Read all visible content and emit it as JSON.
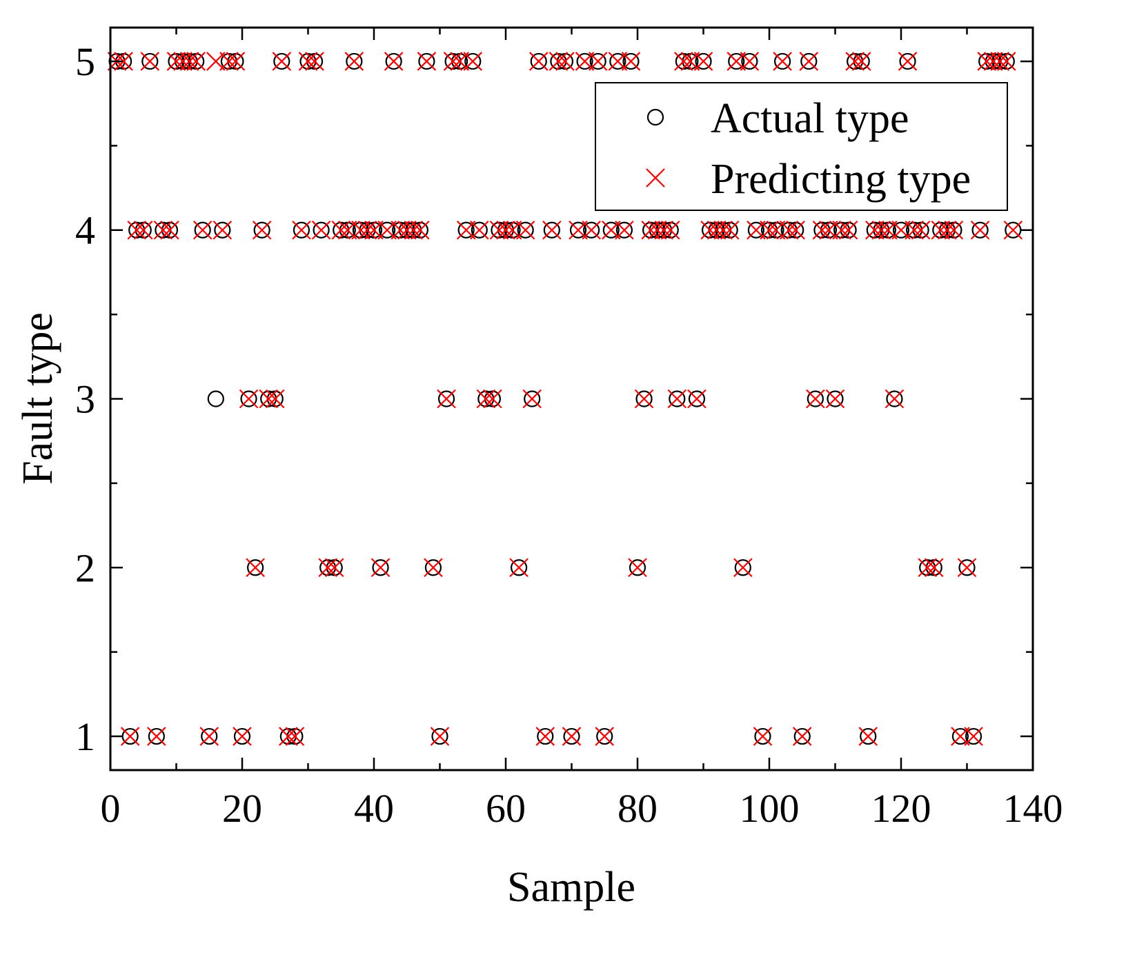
{
  "chart_data": {
    "type": "scatter",
    "title": "",
    "xlabel": "Sample",
    "ylabel": "Fault type",
    "xlim": [
      0,
      140
    ],
    "ylim": [
      0.8,
      5.2
    ],
    "xticks": [
      0,
      20,
      40,
      60,
      80,
      100,
      120,
      140
    ],
    "yticks": [
      1,
      2,
      3,
      4,
      5
    ],
    "grid": false,
    "legend_position": "top-right",
    "series": [
      {
        "name": "Actual type",
        "marker": "circle",
        "color": "#000000",
        "by_type": {
          "5": [
            1,
            2,
            6,
            10,
            11,
            12,
            13,
            18,
            19,
            26,
            30,
            31,
            37,
            43,
            48,
            52,
            53,
            55,
            65,
            68,
            69,
            72,
            74,
            77,
            79,
            87,
            88,
            90,
            95,
            97,
            102,
            106,
            113,
            114,
            121,
            133,
            134,
            135,
            136
          ],
          "4": [
            4,
            5,
            8,
            9,
            14,
            17,
            23,
            29,
            32,
            35,
            36,
            38,
            39,
            40,
            42,
            44,
            45,
            46,
            47,
            54,
            56,
            59,
            60,
            61,
            63,
            67,
            71,
            73,
            76,
            78,
            82,
            83,
            84,
            85,
            91,
            92,
            93,
            94,
            98,
            100,
            101,
            103,
            104,
            108,
            109,
            111,
            112,
            116,
            117,
            118,
            120,
            122,
            123,
            126,
            127,
            128,
            132,
            137
          ],
          "3": [
            16,
            21,
            24,
            25,
            51,
            57,
            58,
            64,
            81,
            86,
            89,
            107,
            110,
            119
          ],
          "2": [
            22,
            33,
            34,
            41,
            49,
            62,
            80,
            96,
            124,
            125,
            130
          ],
          "1": [
            3,
            7,
            15,
            20,
            27,
            28,
            50,
            66,
            70,
            75,
            99,
            105,
            115,
            129,
            131
          ]
        }
      },
      {
        "name": "Predicting type",
        "marker": "x",
        "color": "#ff0000",
        "by_type": {
          "5": [
            1,
            2,
            6,
            10,
            11,
            12,
            13,
            16,
            18,
            19,
            26,
            30,
            31,
            37,
            43,
            48,
            52,
            53,
            55,
            65,
            68,
            69,
            72,
            74,
            77,
            79,
            87,
            88,
            90,
            95,
            97,
            102,
            106,
            113,
            114,
            121,
            133,
            134,
            135,
            136
          ],
          "4": [
            4,
            5,
            8,
            9,
            14,
            17,
            23,
            29,
            32,
            35,
            36,
            38,
            39,
            40,
            42,
            44,
            45,
            46,
            47,
            54,
            56,
            59,
            60,
            61,
            63,
            67,
            71,
            73,
            76,
            78,
            82,
            83,
            84,
            85,
            91,
            92,
            93,
            94,
            98,
            100,
            101,
            103,
            104,
            108,
            109,
            111,
            112,
            116,
            117,
            118,
            120,
            122,
            123,
            126,
            127,
            128,
            132,
            137
          ],
          "3": [
            21,
            24,
            25,
            51,
            57,
            58,
            64,
            81,
            86,
            89,
            107,
            110,
            119
          ],
          "2": [
            22,
            33,
            34,
            41,
            49,
            62,
            80,
            96,
            124,
            125,
            130
          ],
          "1": [
            3,
            7,
            15,
            20,
            27,
            28,
            50,
            66,
            70,
            75,
            99,
            105,
            115,
            129,
            131
          ]
        }
      }
    ]
  }
}
